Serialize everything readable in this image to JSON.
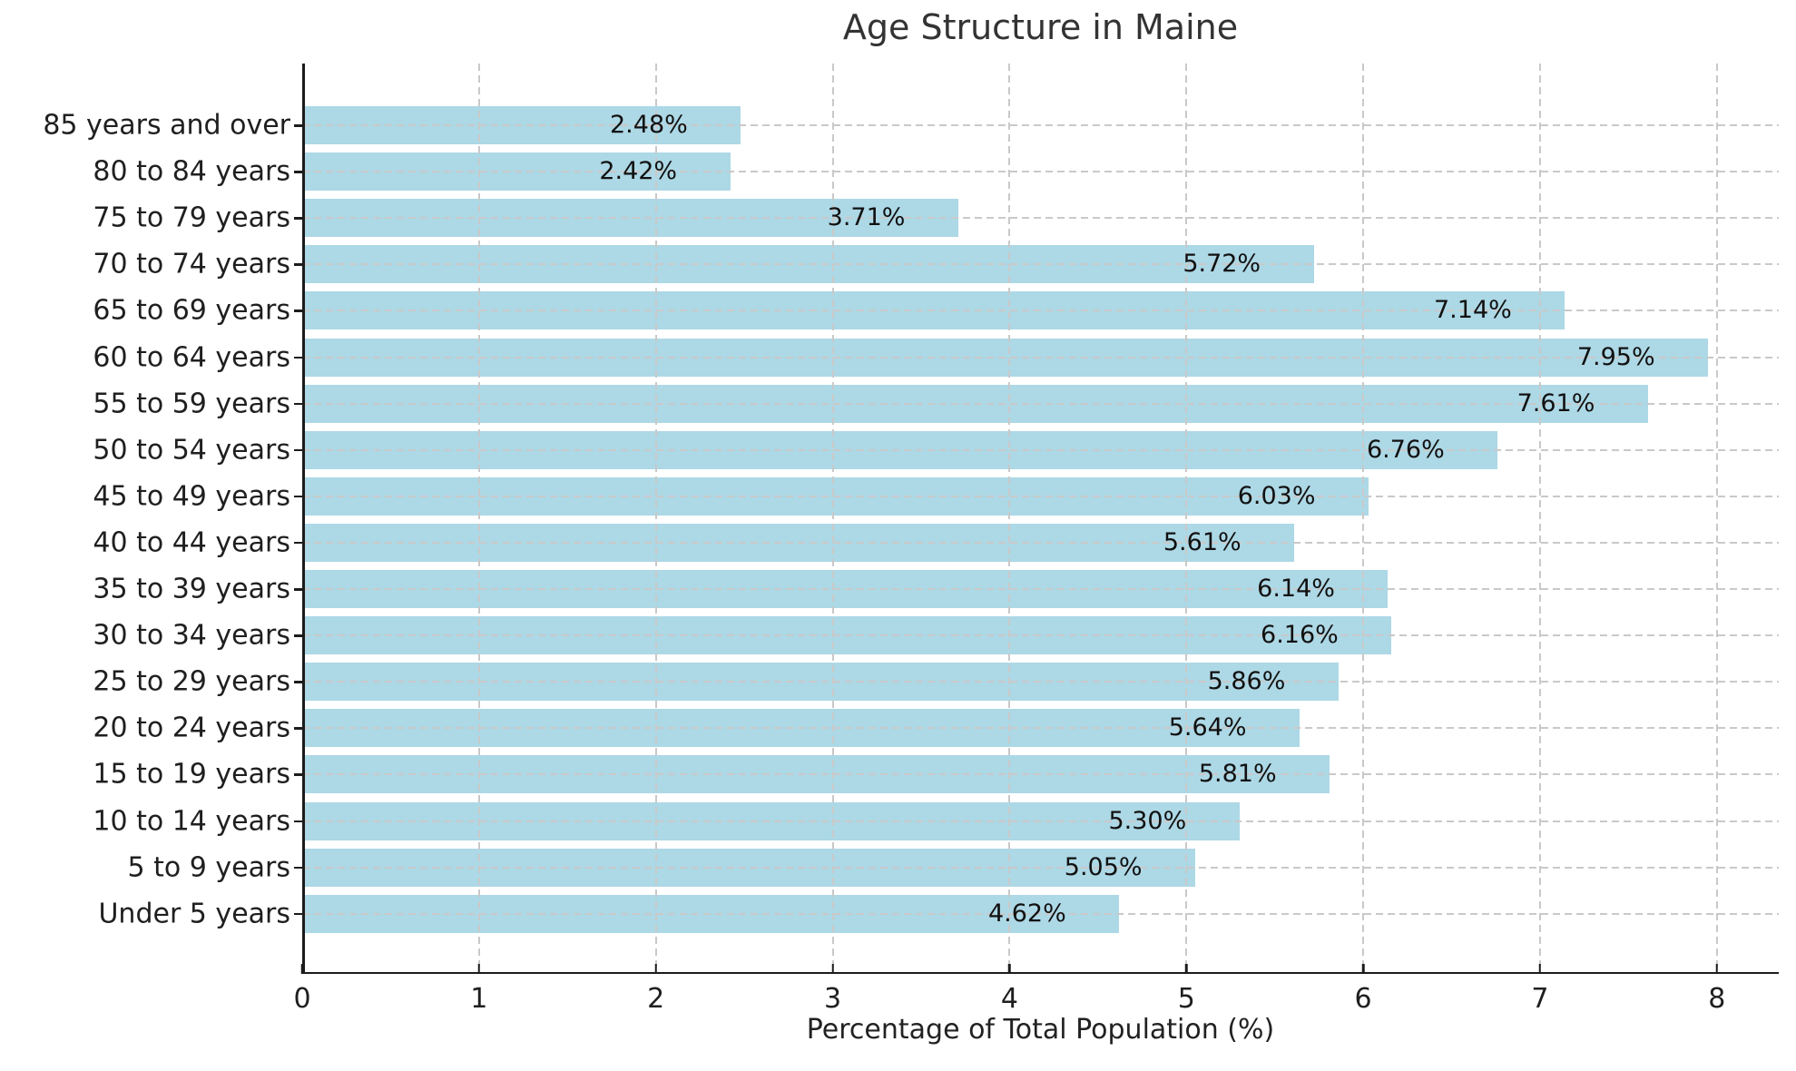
{
  "chart_data": {
    "type": "bar",
    "orientation": "horizontal",
    "title": "Age Structure in Maine",
    "xlabel": "Percentage of Total Population (%)",
    "ylabel": "",
    "categories": [
      "85 years and over",
      "80 to 84 years",
      "75 to 79 years",
      "70 to 74 years",
      "65 to 69 years",
      "60 to 64 years",
      "55 to 59 years",
      "50 to 54 years",
      "45 to 49 years",
      "40 to 44 years",
      "35 to 39 years",
      "30 to 34 years",
      "25 to 29 years",
      "20 to 24 years",
      "15 to 19 years",
      "10 to 14 years",
      "5 to 9 years",
      "Under 5 years"
    ],
    "values": [
      2.48,
      2.42,
      3.71,
      5.72,
      7.14,
      7.95,
      7.61,
      6.76,
      6.03,
      5.61,
      6.14,
      6.16,
      5.86,
      5.64,
      5.81,
      5.3,
      5.05,
      4.62
    ],
    "value_labels": [
      "2.48%",
      "2.42%",
      "3.71%",
      "5.72%",
      "7.14%",
      "7.95%",
      "7.61%",
      "6.76%",
      "6.03%",
      "5.61%",
      "6.14%",
      "6.16%",
      "5.86%",
      "5.64%",
      "5.81%",
      "5.30%",
      "5.05%",
      "4.62%"
    ],
    "xticks": [
      0,
      1,
      2,
      3,
      4,
      5,
      6,
      7,
      8
    ],
    "xlim": [
      0,
      8.35
    ],
    "bar_color": "#ADD8E6",
    "grid_color": "#c9c9c9",
    "axis_color": "#1c1c1c",
    "grid": "dashed-both-axes-above-bars",
    "legend": "none"
  }
}
